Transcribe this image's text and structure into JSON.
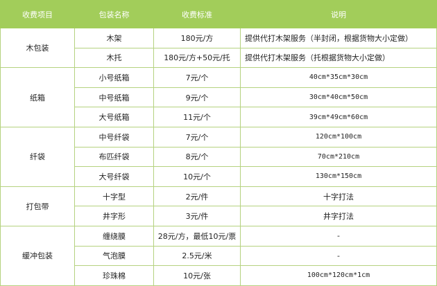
{
  "header": [
    "收费项目",
    "包装名称",
    "收费标准",
    "说明"
  ],
  "groups": [
    {
      "category": "木包装",
      "rows": [
        {
          "name": "木架",
          "price": "180元/方",
          "desc": "提供代打木架服务（半封闭，根据货物大小定做）",
          "align": "left"
        },
        {
          "name": "木托",
          "price": "180元/方+50元/托",
          "desc": "提供代打木架服务（托根据货物大小定做）",
          "align": "left"
        }
      ]
    },
    {
      "category": "纸箱",
      "rows": [
        {
          "name": "小号纸箱",
          "price": "7元/个",
          "desc": "40cm*35cm*30cm"
        },
        {
          "name": "中号纸箱",
          "price": "9元/个",
          "desc": "30cm*40cm*50cm"
        },
        {
          "name": "大号纸箱",
          "price": "11元/个",
          "desc": "39cm*49cm*60cm"
        }
      ]
    },
    {
      "category": "纤袋",
      "rows": [
        {
          "name": "中号纤袋",
          "price": "7元/个",
          "desc": "120cm*100cm"
        },
        {
          "name": "布匹纤袋",
          "price": "8元/个",
          "desc": "70cm*210cm"
        },
        {
          "name": "大号纤袋",
          "price": "10元/个",
          "desc": "130cm*150cm"
        }
      ]
    },
    {
      "category": "打包带",
      "rows": [
        {
          "name": "十字型",
          "price": "2元/件",
          "desc": "十字打法"
        },
        {
          "name": "井字形",
          "price": "3元/件",
          "desc": "井字打法"
        }
      ]
    },
    {
      "category": "缓冲包装",
      "rows": [
        {
          "name": "缠绕膜",
          "price": "28元/方，最低10元/票",
          "desc": "-"
        },
        {
          "name": "气泡膜",
          "price": "2.5元/米",
          "desc": "-"
        },
        {
          "name": "珍珠棉",
          "price": "10元/张",
          "desc": "100cm*120cm*1cm"
        }
      ]
    }
  ],
  "colors": {
    "header_bg": "#a2cd5a",
    "border": "#b5d27f"
  }
}
